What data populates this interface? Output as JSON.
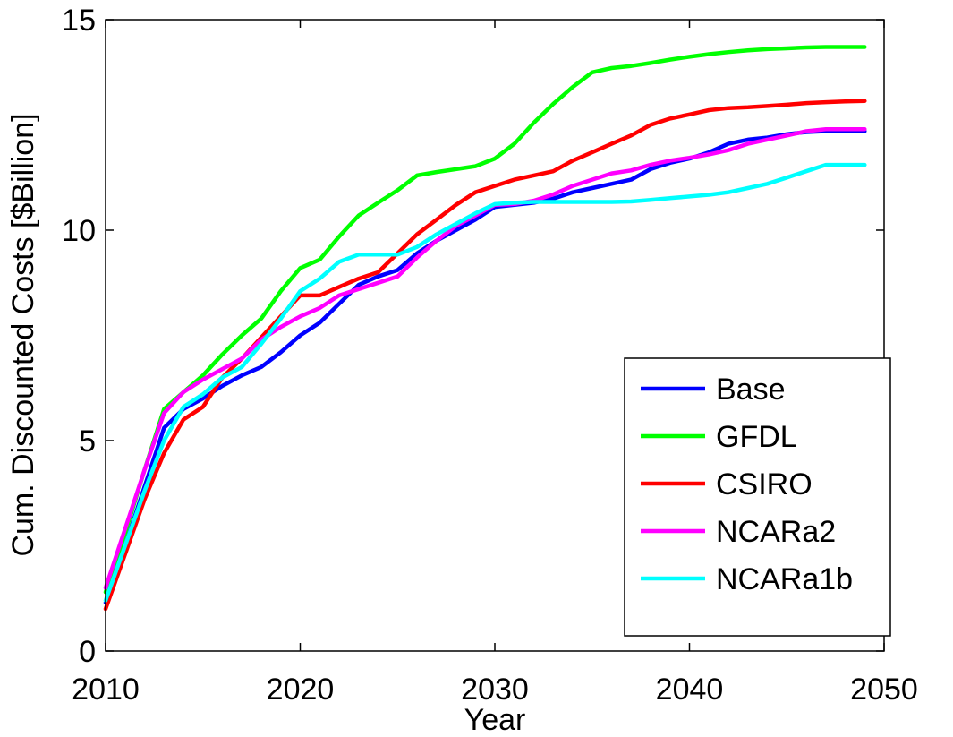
{
  "chart_data": {
    "type": "line",
    "title": "",
    "xlabel": "Year",
    "ylabel": "Cum. Discounted Costs [$Billion]",
    "xlim": [
      2010,
      2050
    ],
    "ylim": [
      0,
      15
    ],
    "xticks": [
      2010,
      2020,
      2030,
      2040,
      2050
    ],
    "yticks": [
      0,
      5,
      10,
      15
    ],
    "grid": false,
    "legend_position": "bottom-right",
    "series": [
      {
        "name": "Base",
        "color": "#0000ff",
        "x": [
          2010,
          2011,
          2012,
          2013,
          2014,
          2015,
          2016,
          2017,
          2018,
          2019,
          2020,
          2021,
          2022,
          2023,
          2024,
          2025,
          2026,
          2027,
          2028,
          2029,
          2030,
          2031,
          2032,
          2033,
          2034,
          2035,
          2036,
          2037,
          2038,
          2039,
          2040,
          2041,
          2042,
          2043,
          2044,
          2045,
          2046,
          2047,
          2048,
          2049
        ],
        "y": [
          1.15,
          2.5,
          3.9,
          5.3,
          5.75,
          6.0,
          6.3,
          6.55,
          6.75,
          7.1,
          7.5,
          7.8,
          8.25,
          8.7,
          8.9,
          9.05,
          9.45,
          9.75,
          10.0,
          10.25,
          10.55,
          10.6,
          10.65,
          10.75,
          10.9,
          11.0,
          11.1,
          11.2,
          11.45,
          11.6,
          11.7,
          11.85,
          12.05,
          12.15,
          12.2,
          12.28,
          12.33,
          12.35,
          12.35,
          12.35
        ]
      },
      {
        "name": "GFDL",
        "color": "#00ff00",
        "x": [
          2010,
          2011,
          2012,
          2013,
          2014,
          2015,
          2016,
          2017,
          2018,
          2019,
          2020,
          2021,
          2022,
          2023,
          2024,
          2025,
          2026,
          2027,
          2028,
          2029,
          2030,
          2031,
          2032,
          2033,
          2034,
          2035,
          2036,
          2037,
          2038,
          2039,
          2040,
          2041,
          2042,
          2043,
          2044,
          2045,
          2046,
          2047,
          2048,
          2049
        ],
        "y": [
          1.4,
          2.8,
          4.3,
          5.75,
          6.15,
          6.55,
          7.05,
          7.5,
          7.9,
          8.55,
          9.1,
          9.3,
          9.85,
          10.35,
          10.65,
          10.95,
          11.3,
          11.38,
          11.45,
          11.52,
          11.7,
          12.05,
          12.55,
          13.0,
          13.4,
          13.75,
          13.85,
          13.9,
          13.97,
          14.05,
          14.12,
          14.18,
          14.23,
          14.27,
          14.3,
          14.32,
          14.34,
          14.35,
          14.35,
          14.35
        ]
      },
      {
        "name": "CSIRO",
        "color": "#ff0000",
        "x": [
          2010,
          2011,
          2012,
          2013,
          2014,
          2015,
          2016,
          2017,
          2018,
          2019,
          2020,
          2021,
          2022,
          2023,
          2024,
          2025,
          2026,
          2027,
          2028,
          2029,
          2030,
          2031,
          2032,
          2033,
          2034,
          2035,
          2036,
          2037,
          2038,
          2039,
          2040,
          2041,
          2042,
          2043,
          2044,
          2045,
          2046,
          2047,
          2048,
          2049
        ],
        "y": [
          1.0,
          2.3,
          3.6,
          4.7,
          5.5,
          5.8,
          6.5,
          6.95,
          7.45,
          7.95,
          8.45,
          8.45,
          8.65,
          8.85,
          9.0,
          9.45,
          9.9,
          10.25,
          10.6,
          10.9,
          11.05,
          11.2,
          11.3,
          11.4,
          11.65,
          11.85,
          12.05,
          12.25,
          12.5,
          12.65,
          12.75,
          12.85,
          12.9,
          12.92,
          12.95,
          12.98,
          13.02,
          13.04,
          13.06,
          13.07
        ]
      },
      {
        "name": "NCARa2",
        "color": "#ff00ff",
        "x": [
          2010,
          2011,
          2012,
          2013,
          2014,
          2015,
          2016,
          2017,
          2018,
          2019,
          2020,
          2021,
          2022,
          2023,
          2024,
          2025,
          2026,
          2027,
          2028,
          2029,
          2030,
          2031,
          2032,
          2033,
          2034,
          2035,
          2036,
          2037,
          2038,
          2039,
          2040,
          2041,
          2042,
          2043,
          2044,
          2045,
          2046,
          2047,
          2048,
          2049
        ],
        "y": [
          1.5,
          2.9,
          4.3,
          5.65,
          6.15,
          6.45,
          6.7,
          6.95,
          7.4,
          7.7,
          7.95,
          8.15,
          8.45,
          8.6,
          8.75,
          8.9,
          9.35,
          9.75,
          10.1,
          10.35,
          10.6,
          10.62,
          10.7,
          10.85,
          11.05,
          11.2,
          11.35,
          11.42,
          11.55,
          11.65,
          11.72,
          11.8,
          11.9,
          12.05,
          12.15,
          12.25,
          12.35,
          12.4,
          12.4,
          12.4
        ]
      },
      {
        "name": "NCARa1b",
        "color": "#00ffff",
        "x": [
          2010,
          2011,
          2012,
          2013,
          2014,
          2015,
          2016,
          2017,
          2018,
          2019,
          2020,
          2021,
          2022,
          2023,
          2024,
          2025,
          2026,
          2027,
          2028,
          2029,
          2030,
          2031,
          2032,
          2033,
          2034,
          2035,
          2036,
          2037,
          2038,
          2039,
          2040,
          2041,
          2042,
          2043,
          2044,
          2045,
          2046,
          2047,
          2048,
          2049
        ],
        "y": [
          1.2,
          2.5,
          3.8,
          5.0,
          5.8,
          6.1,
          6.5,
          6.75,
          7.3,
          7.9,
          8.55,
          8.85,
          9.25,
          9.42,
          9.42,
          9.42,
          9.6,
          9.9,
          10.15,
          10.4,
          10.62,
          10.65,
          10.67,
          10.67,
          10.67,
          10.67,
          10.67,
          10.68,
          10.72,
          10.76,
          10.8,
          10.84,
          10.9,
          11.0,
          11.1,
          11.25,
          11.4,
          11.55,
          11.55,
          11.55
        ]
      }
    ]
  }
}
